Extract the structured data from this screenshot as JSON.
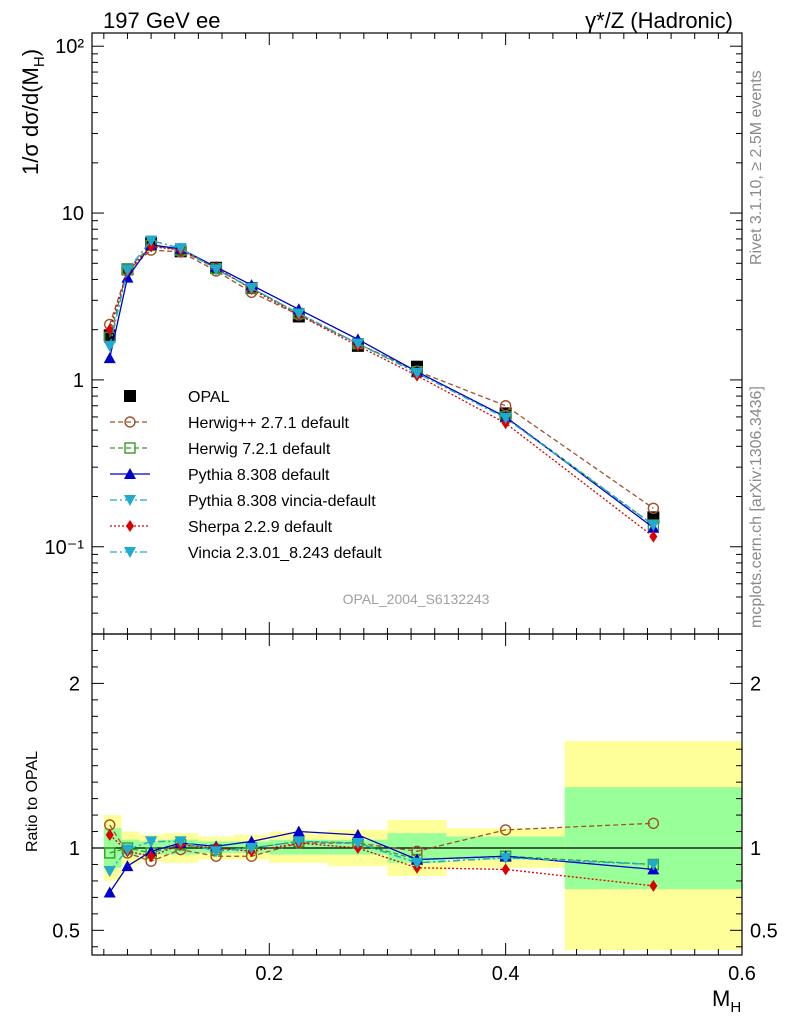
{
  "header": {
    "left": "197 GeV ee",
    "right": "γ*/Z (Hadronic)"
  },
  "side_labels": {
    "rivet": "Rivet 3.1.10, ≥ 2.5M events",
    "mcplots": "mcplots.cern.ch [arXiv:1306.3436]"
  },
  "analysis_tag": "OPAL_2004_S6132243",
  "chart_data": [
    {
      "type": "line",
      "panel": "main",
      "ylabel": "1/σ dσ/d(M_H)",
      "yscale": "log",
      "ylim": [
        0.03,
        120
      ],
      "xlim": [
        0.05,
        0.6
      ],
      "y_ticks": [
        0.1,
        1,
        10,
        100
      ],
      "y_tick_labels": [
        "10⁻¹",
        "1",
        "10",
        "10²"
      ],
      "grid": false,
      "legend_position": "lower-left",
      "x": [
        0.065,
        0.08,
        0.1,
        0.125,
        0.155,
        0.185,
        0.225,
        0.275,
        0.325,
        0.4,
        0.525
      ],
      "series": [
        {
          "name": "OPAL",
          "color": "#000000",
          "marker": "square-filled",
          "line": "none",
          "values": [
            1.85,
            4.6,
            6.6,
            5.9,
            4.7,
            3.55,
            2.4,
            1.6,
            1.2,
            0.63,
            0.15
          ]
        },
        {
          "name": "Herwig++ 2.7.1 default",
          "color": "#a0522d",
          "marker": "circle-open",
          "line": "dashed",
          "values": [
            2.15,
            4.5,
            6.0,
            5.85,
            4.5,
            3.35,
            2.45,
            1.65,
            1.13,
            0.7,
            0.17
          ]
        },
        {
          "name": "Herwig 7.2.1 default",
          "color": "#3a9a2a",
          "marker": "square-open",
          "line": "dashed",
          "values": [
            1.8,
            4.6,
            6.4,
            6.0,
            4.65,
            3.55,
            2.5,
            1.65,
            1.12,
            0.6,
            0.135
          ]
        },
        {
          "name": "Pythia 8.308 default",
          "color": "#0000cc",
          "marker": "triangle-up",
          "line": "solid",
          "values": [
            1.35,
            4.1,
            6.45,
            6.1,
            4.75,
            3.7,
            2.65,
            1.75,
            1.12,
            0.6,
            0.13
          ]
        },
        {
          "name": "Pythia 8.308 vincia-default",
          "color": "#20aacc",
          "marker": "triangle-down",
          "line": "dashdot",
          "values": [
            1.6,
            4.55,
            6.85,
            6.15,
            4.6,
            3.55,
            2.5,
            1.65,
            1.1,
            0.59,
            0.135
          ]
        },
        {
          "name": "Sherpa 2.2.9 default",
          "color": "#dd0000",
          "marker": "diamond",
          "line": "dotted",
          "values": [
            2.0,
            4.5,
            6.3,
            6.0,
            4.7,
            3.5,
            2.45,
            1.6,
            1.06,
            0.55,
            0.115
          ]
        },
        {
          "name": "Vincia 2.3.01_8.243 default",
          "color": "#20aacc",
          "marker": "triangle-down",
          "line": "dashdot",
          "values": [
            1.6,
            4.55,
            6.85,
            6.15,
            4.6,
            3.55,
            2.5,
            1.65,
            1.1,
            0.59,
            0.135
          ]
        }
      ]
    },
    {
      "type": "line",
      "panel": "ratio",
      "ylabel": "Ratio to OPAL",
      "xlabel": "M_H",
      "ylim": [
        0.35,
        2.3
      ],
      "xlim": [
        0.05,
        0.6
      ],
      "y_ticks": [
        0.5,
        1,
        2
      ],
      "y_tick_labels": [
        "0.5",
        "1",
        "2"
      ],
      "x_ticks": [
        0.2,
        0.4,
        0.6
      ],
      "x_tick_labels": [
        "0.2",
        "0.4",
        "0.6"
      ],
      "x": [
        0.065,
        0.08,
        0.1,
        0.125,
        0.155,
        0.185,
        0.225,
        0.275,
        0.325,
        0.4,
        0.525
      ],
      "bands": [
        {
          "x0": 0.06,
          "x1": 0.075,
          "inner": [
            0.88,
            1.12
          ],
          "outer": [
            0.8,
            1.2
          ]
        },
        {
          "x0": 0.075,
          "x1": 0.09,
          "inner": [
            0.95,
            1.05
          ],
          "outer": [
            0.9,
            1.1
          ]
        },
        {
          "x0": 0.09,
          "x1": 0.11,
          "inner": [
            0.96,
            1.04
          ],
          "outer": [
            0.92,
            1.08
          ]
        },
        {
          "x0": 0.11,
          "x1": 0.14,
          "inner": [
            0.96,
            1.05
          ],
          "outer": [
            0.91,
            1.09
          ]
        },
        {
          "x0": 0.14,
          "x1": 0.17,
          "inner": [
            0.97,
            1.04
          ],
          "outer": [
            0.93,
            1.07
          ]
        },
        {
          "x0": 0.17,
          "x1": 0.2,
          "inner": [
            0.97,
            1.04
          ],
          "outer": [
            0.93,
            1.08
          ]
        },
        {
          "x0": 0.2,
          "x1": 0.25,
          "inner": [
            0.96,
            1.05
          ],
          "outer": [
            0.91,
            1.1
          ]
        },
        {
          "x0": 0.25,
          "x1": 0.3,
          "inner": [
            0.96,
            1.05
          ],
          "outer": [
            0.89,
            1.11
          ]
        },
        {
          "x0": 0.3,
          "x1": 0.35,
          "inner": [
            0.91,
            1.09
          ],
          "outer": [
            0.83,
            1.17
          ]
        },
        {
          "x0": 0.35,
          "x1": 0.45,
          "inner": [
            0.93,
            1.07
          ],
          "outer": [
            0.88,
            1.12
          ]
        },
        {
          "x0": 0.45,
          "x1": 0.6,
          "inner": [
            0.75,
            1.37
          ],
          "outer": [
            0.38,
            1.65
          ]
        }
      ],
      "series": [
        {
          "name": "Herwig++ 2.7.1 default",
          "color": "#a0522d",
          "marker": "circle-open",
          "line": "dashed",
          "values": [
            1.14,
            0.97,
            0.92,
            0.99,
            0.95,
            0.95,
            1.03,
            1.03,
            0.98,
            1.11,
            1.15
          ]
        },
        {
          "name": "Herwig 7.2.1 default",
          "color": "#3a9a2a",
          "marker": "square-open",
          "line": "dashed",
          "values": [
            0.97,
            1.0,
            0.97,
            1.02,
            0.99,
            1.0,
            1.04,
            1.03,
            0.93,
            0.95,
            0.9
          ]
        },
        {
          "name": "Pythia 8.308 default",
          "color": "#0000cc",
          "marker": "triangle-up",
          "line": "solid",
          "values": [
            0.73,
            0.89,
            0.98,
            1.03,
            1.01,
            1.04,
            1.1,
            1.08,
            0.93,
            0.95,
            0.87
          ]
        },
        {
          "name": "Pythia 8.308 vincia-default",
          "color": "#20aacc",
          "marker": "triangle-down",
          "line": "dashdot",
          "values": [
            0.86,
            0.99,
            1.04,
            1.04,
            0.98,
            1.0,
            1.04,
            1.03,
            0.91,
            0.94,
            0.9
          ]
        },
        {
          "name": "Sherpa 2.2.9 default",
          "color": "#dd0000",
          "marker": "diamond",
          "line": "dotted",
          "values": [
            1.08,
            0.98,
            0.95,
            1.02,
            1.0,
            0.98,
            1.03,
            1.0,
            0.88,
            0.87,
            0.77
          ]
        },
        {
          "name": "Vincia 2.3.01_8.243 default",
          "color": "#20aacc",
          "marker": "triangle-down",
          "line": "dashdot",
          "values": [
            0.86,
            0.99,
            1.04,
            1.04,
            0.98,
            1.0,
            1.04,
            1.03,
            0.91,
            0.94,
            0.9
          ]
        }
      ]
    }
  ]
}
